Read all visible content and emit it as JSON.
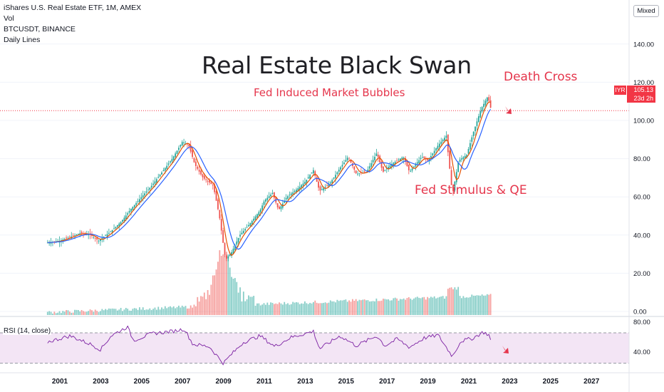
{
  "legend": {
    "line1": "iShares U.S. Real Estate ETF, 1M, AMEX",
    "line2": "Vol",
    "line3": "BTCUSDT, BINANCE",
    "line4": "Daily Lines"
  },
  "scale_mode": "Mixed",
  "title": "Real Estate Black Swan",
  "annotations": {
    "bubbles": "Fed Induced Market Bubbles",
    "death_cross": "Death Cross",
    "stimulus": "Fed Stimulus & QE"
  },
  "price_tag": {
    "symbol": "IYR",
    "price": "105.13",
    "countdown": "23d 2h"
  },
  "rsi_label": "RSI (14, close)",
  "colors": {
    "up": "#26a69a",
    "down": "#ef5350",
    "ma_fast": "#e65100",
    "ma_slow": "#2962ff",
    "rsi": "#7b1fa2",
    "rsi_band": "#f3e5f5",
    "annotation": "#e5364c"
  },
  "chart_data": [
    {
      "type": "line",
      "name": "IYR monthly price",
      "x_ticks": [
        "2001",
        "2003",
        "2005",
        "2007",
        "2009",
        "2011",
        "2013",
        "2015",
        "2017",
        "2019",
        "2021",
        "2023",
        "2025",
        "2027"
      ],
      "y_ticks": [
        "140.00",
        "120.00",
        "100.00",
        "80.00",
        "60.00",
        "40.00",
        "20.00",
        "0.00"
      ],
      "ylim": [
        0,
        140
      ],
      "points": [
        [
          2000.4,
          36
        ],
        [
          2001.0,
          37
        ],
        [
          2001.5,
          39
        ],
        [
          2002.0,
          41
        ],
        [
          2002.5,
          40
        ],
        [
          2002.9,
          37
        ],
        [
          2003.5,
          42
        ],
        [
          2004.0,
          47
        ],
        [
          2004.5,
          54
        ],
        [
          2005.0,
          60
        ],
        [
          2005.5,
          66
        ],
        [
          2006.0,
          73
        ],
        [
          2006.5,
          80
        ],
        [
          2007.0,
          89
        ],
        [
          2007.3,
          87
        ],
        [
          2007.6,
          77
        ],
        [
          2008.0,
          70
        ],
        [
          2008.5,
          66
        ],
        [
          2008.8,
          50
        ],
        [
          2009.1,
          27
        ],
        [
          2009.4,
          31
        ],
        [
          2009.8,
          40
        ],
        [
          2010.3,
          46
        ],
        [
          2010.8,
          53
        ],
        [
          2011.0,
          58
        ],
        [
          2011.4,
          62
        ],
        [
          2011.7,
          53
        ],
        [
          2012.1,
          60
        ],
        [
          2012.6,
          64
        ],
        [
          2013.0,
          68
        ],
        [
          2013.4,
          74
        ],
        [
          2013.7,
          63
        ],
        [
          2014.2,
          67
        ],
        [
          2014.7,
          75
        ],
        [
          2015.1,
          81
        ],
        [
          2015.5,
          72
        ],
        [
          2016.0,
          73
        ],
        [
          2016.5,
          83
        ],
        [
          2016.8,
          73
        ],
        [
          2017.2,
          77
        ],
        [
          2017.8,
          81
        ],
        [
          2018.1,
          73
        ],
        [
          2018.7,
          81
        ],
        [
          2019.0,
          79
        ],
        [
          2019.5,
          87
        ],
        [
          2019.9,
          92
        ],
        [
          2020.2,
          61
        ],
        [
          2020.5,
          79
        ],
        [
          2020.9,
          82
        ],
        [
          2021.2,
          93
        ],
        [
          2021.6,
          106
        ],
        [
          2021.9,
          112
        ],
        [
          2022.0,
          110
        ],
        [
          2022.1,
          105
        ]
      ],
      "annotations": [
        "Real Estate Black Swan",
        "Fed Induced Market Bubbles",
        "Death Cross",
        "Fed Stimulus & QE"
      ]
    },
    {
      "type": "line",
      "name": "RSI (14, close)",
      "y_ticks": [
        "80.00",
        "40.00"
      ],
      "ylim": [
        25,
        85
      ],
      "bands": [
        30,
        70
      ],
      "points": [
        [
          2000.4,
          58
        ],
        [
          2001.5,
          66
        ],
        [
          2002.5,
          55
        ],
        [
          2003.0,
          48
        ],
        [
          2003.5,
          66
        ],
        [
          2004.3,
          78
        ],
        [
          2004.6,
          60
        ],
        [
          2005.5,
          69
        ],
        [
          2006.5,
          72
        ],
        [
          2007.1,
          75
        ],
        [
          2007.5,
          55
        ],
        [
          2008.3,
          52
        ],
        [
          2009.0,
          30
        ],
        [
          2009.4,
          42
        ],
        [
          2010.0,
          58
        ],
        [
          2010.8,
          66
        ],
        [
          2011.5,
          52
        ],
        [
          2012.3,
          64
        ],
        [
          2013.4,
          72
        ],
        [
          2013.7,
          49
        ],
        [
          2014.7,
          66
        ],
        [
          2015.5,
          53
        ],
        [
          2016.5,
          66
        ],
        [
          2016.9,
          53
        ],
        [
          2017.5,
          62
        ],
        [
          2018.1,
          51
        ],
        [
          2018.8,
          63
        ],
        [
          2019.5,
          67
        ],
        [
          2020.2,
          39
        ],
        [
          2020.6,
          59
        ],
        [
          2021.2,
          63
        ],
        [
          2021.7,
          71
        ],
        [
          2022.0,
          67
        ],
        [
          2022.1,
          57
        ]
      ]
    }
  ]
}
